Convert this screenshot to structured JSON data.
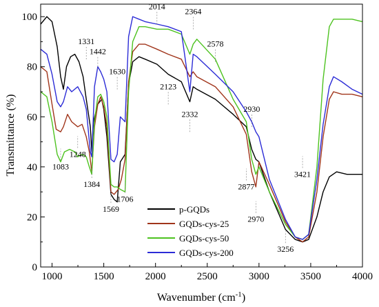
{
  "chart_data": {
    "type": "line",
    "xlabel": "Wavenumber (cm",
    "xlabel_sup": "-1",
    "xlabel_end": ")",
    "ylabel": "Transmittance (%)",
    "xlim": [
      890,
      4000
    ],
    "ylim": [
      0,
      105
    ],
    "xticks": [
      "1000",
      "1500",
      "2000",
      "2500",
      "3000",
      "3500",
      "4000"
    ],
    "yticks": [
      "0",
      "20",
      "40",
      "60",
      "80",
      "100"
    ],
    "grid": false,
    "legend_position": "bottom-center",
    "series": [
      {
        "name": "p-GQDs",
        "color": "#000000",
        "points": [
          [
            890,
            97
          ],
          [
            950,
            100
          ],
          [
            1000,
            98
          ],
          [
            1050,
            88
          ],
          [
            1083,
            76
          ],
          [
            1110,
            71
          ],
          [
            1140,
            80
          ],
          [
            1180,
            84
          ],
          [
            1220,
            85
          ],
          [
            1260,
            82
          ],
          [
            1300,
            76
          ],
          [
            1331,
            67
          ],
          [
            1370,
            56
          ],
          [
            1384,
            46
          ],
          [
            1400,
            58
          ],
          [
            1442,
            65
          ],
          [
            1480,
            67
          ],
          [
            1500,
            63
          ],
          [
            1530,
            52
          ],
          [
            1569,
            29
          ],
          [
            1600,
            27
          ],
          [
            1630,
            26
          ],
          [
            1660,
            42
          ],
          [
            1706,
            45
          ],
          [
            1740,
            73
          ],
          [
            1780,
            82
          ],
          [
            1840,
            84
          ],
          [
            1900,
            83
          ],
          [
            2014,
            81
          ],
          [
            2123,
            77
          ],
          [
            2250,
            74
          ],
          [
            2332,
            66
          ],
          [
            2364,
            72
          ],
          [
            2400,
            71
          ],
          [
            2578,
            67
          ],
          [
            2750,
            61
          ],
          [
            2877,
            56
          ],
          [
            2930,
            47
          ],
          [
            2970,
            43
          ],
          [
            3000,
            42
          ],
          [
            3100,
            30
          ],
          [
            3256,
            15
          ],
          [
            3350,
            11
          ],
          [
            3421,
            10
          ],
          [
            3480,
            11
          ],
          [
            3560,
            20
          ],
          [
            3620,
            30
          ],
          [
            3680,
            36
          ],
          [
            3750,
            38
          ],
          [
            3850,
            37
          ],
          [
            4000,
            37
          ]
        ]
      },
      {
        "name": "GQDs-cys-25",
        "color": "#a0341a",
        "points": [
          [
            890,
            80
          ],
          [
            950,
            78
          ],
          [
            1000,
            65
          ],
          [
            1040,
            55
          ],
          [
            1083,
            54
          ],
          [
            1110,
            56
          ],
          [
            1150,
            61
          ],
          [
            1190,
            58
          ],
          [
            1248,
            56
          ],
          [
            1290,
            57
          ],
          [
            1331,
            52
          ],
          [
            1360,
            46
          ],
          [
            1384,
            38
          ],
          [
            1410,
            56
          ],
          [
            1442,
            65
          ],
          [
            1470,
            68
          ],
          [
            1500,
            64
          ],
          [
            1530,
            56
          ],
          [
            1569,
            30
          ],
          [
            1600,
            29
          ],
          [
            1640,
            31
          ],
          [
            1670,
            35
          ],
          [
            1706,
            43
          ],
          [
            1740,
            74
          ],
          [
            1780,
            86
          ],
          [
            1840,
            89
          ],
          [
            1900,
            89
          ],
          [
            2014,
            87
          ],
          [
            2123,
            85
          ],
          [
            2250,
            83
          ],
          [
            2332,
            76
          ],
          [
            2364,
            78
          ],
          [
            2400,
            76
          ],
          [
            2578,
            72
          ],
          [
            2750,
            64
          ],
          [
            2877,
            53
          ],
          [
            2930,
            38
          ],
          [
            2970,
            32
          ],
          [
            3000,
            42
          ],
          [
            3100,
            33
          ],
          [
            3256,
            18
          ],
          [
            3350,
            12
          ],
          [
            3421,
            10
          ],
          [
            3480,
            12
          ],
          [
            3560,
            30
          ],
          [
            3620,
            52
          ],
          [
            3680,
            67
          ],
          [
            3720,
            70
          ],
          [
            3800,
            69
          ],
          [
            3900,
            69
          ],
          [
            4000,
            68
          ]
        ]
      },
      {
        "name": "GQDs-cys-50",
        "color": "#4cc21e",
        "points": [
          [
            890,
            70
          ],
          [
            950,
            68
          ],
          [
            1000,
            58
          ],
          [
            1050,
            45
          ],
          [
            1083,
            42
          ],
          [
            1120,
            46
          ],
          [
            1170,
            47
          ],
          [
            1220,
            46
          ],
          [
            1248,
            44
          ],
          [
            1290,
            45
          ],
          [
            1331,
            44
          ],
          [
            1360,
            40
          ],
          [
            1384,
            37
          ],
          [
            1410,
            58
          ],
          [
            1442,
            68
          ],
          [
            1470,
            69
          ],
          [
            1500,
            66
          ],
          [
            1530,
            60
          ],
          [
            1569,
            33
          ],
          [
            1600,
            32
          ],
          [
            1630,
            32
          ],
          [
            1660,
            31
          ],
          [
            1706,
            30
          ],
          [
            1740,
            70
          ],
          [
            1780,
            90
          ],
          [
            1840,
            96
          ],
          [
            1900,
            96
          ],
          [
            2014,
            95
          ],
          [
            2123,
            95
          ],
          [
            2250,
            93
          ],
          [
            2332,
            85
          ],
          [
            2364,
            89
          ],
          [
            2400,
            91
          ],
          [
            2578,
            83
          ],
          [
            2750,
            67
          ],
          [
            2877,
            58
          ],
          [
            2930,
            43
          ],
          [
            2970,
            37
          ],
          [
            3000,
            40
          ],
          [
            3100,
            30
          ],
          [
            3256,
            17
          ],
          [
            3350,
            12
          ],
          [
            3421,
            11
          ],
          [
            3480,
            13
          ],
          [
            3560,
            40
          ],
          [
            3620,
            75
          ],
          [
            3680,
            96
          ],
          [
            3720,
            99
          ],
          [
            3800,
            99
          ],
          [
            3900,
            99
          ],
          [
            4000,
            98
          ]
        ]
      },
      {
        "name": "GQDs-cys-200",
        "color": "#2b2bd6",
        "points": [
          [
            890,
            87
          ],
          [
            950,
            85
          ],
          [
            1000,
            77
          ],
          [
            1050,
            66
          ],
          [
            1083,
            64
          ],
          [
            1110,
            66
          ],
          [
            1150,
            72
          ],
          [
            1190,
            70
          ],
          [
            1248,
            72
          ],
          [
            1300,
            68
          ],
          [
            1331,
            63
          ],
          [
            1370,
            46
          ],
          [
            1384,
            44
          ],
          [
            1410,
            72
          ],
          [
            1442,
            80
          ],
          [
            1470,
            78
          ],
          [
            1500,
            75
          ],
          [
            1530,
            70
          ],
          [
            1569,
            43
          ],
          [
            1600,
            42
          ],
          [
            1630,
            45
          ],
          [
            1660,
            60
          ],
          [
            1706,
            58
          ],
          [
            1740,
            92
          ],
          [
            1780,
            100
          ],
          [
            1840,
            99
          ],
          [
            1900,
            98
          ],
          [
            2014,
            97
          ],
          [
            2123,
            96
          ],
          [
            2250,
            94
          ],
          [
            2332,
            70
          ],
          [
            2364,
            85
          ],
          [
            2400,
            84
          ],
          [
            2578,
            77
          ],
          [
            2750,
            70
          ],
          [
            2877,
            62
          ],
          [
            2930,
            58
          ],
          [
            2970,
            54
          ],
          [
            3000,
            52
          ],
          [
            3100,
            35
          ],
          [
            3256,
            19
          ],
          [
            3350,
            12
          ],
          [
            3421,
            11
          ],
          [
            3480,
            13
          ],
          [
            3560,
            35
          ],
          [
            3620,
            57
          ],
          [
            3680,
            72
          ],
          [
            3720,
            76
          ],
          [
            3800,
            74
          ],
          [
            3900,
            71
          ],
          [
            4000,
            69
          ]
        ]
      }
    ],
    "annotations": [
      {
        "label": "1083",
        "x": 1083,
        "y": 39
      },
      {
        "label": "1248",
        "x": 1248,
        "y": 44
      },
      {
        "label": "1331",
        "x": 1331,
        "y": 89
      },
      {
        "label": "1384",
        "x": 1384,
        "y": 32
      },
      {
        "label": "1442",
        "x": 1442,
        "y": 85
      },
      {
        "label": "1569",
        "x": 1569,
        "y": 22
      },
      {
        "label": "1630",
        "x": 1630,
        "y": 77
      },
      {
        "label": "1706",
        "x": 1706,
        "y": 26
      },
      {
        "label": "2014",
        "x": 2014,
        "y": 103
      },
      {
        "label": "2123",
        "x": 2123,
        "y": 71
      },
      {
        "label": "2332",
        "x": 2332,
        "y": 60
      },
      {
        "label": "2364",
        "x": 2364,
        "y": 101
      },
      {
        "label": "2578",
        "x": 2578,
        "y": 88
      },
      {
        "label": "2877",
        "x": 2877,
        "y": 31
      },
      {
        "label": "2930",
        "x": 2930,
        "y": 62
      },
      {
        "label": "2970",
        "x": 2970,
        "y": 18
      },
      {
        "label": "3256",
        "x": 3256,
        "y": 6
      },
      {
        "label": "3421",
        "x": 3421,
        "y": 36
      }
    ]
  }
}
